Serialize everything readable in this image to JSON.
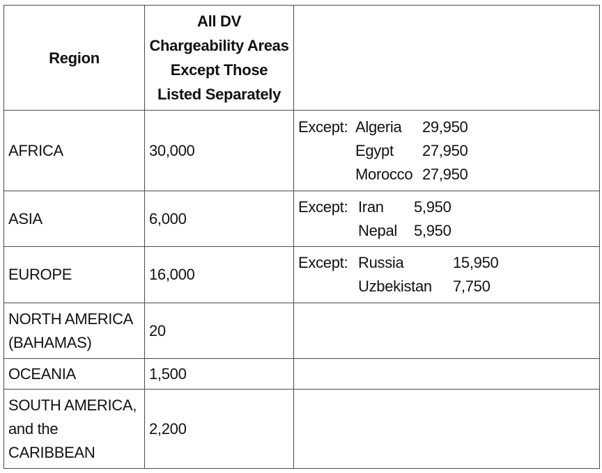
{
  "table": {
    "headers": {
      "region": "Region",
      "all_dv": "All DV Chargeability Areas Except Those Listed Separately",
      "exceptions": ""
    },
    "rows": [
      {
        "region": "AFRICA",
        "value": "30,000",
        "except_label": "Except:",
        "exceptions": [
          {
            "country": "Algeria",
            "value": "29,950"
          },
          {
            "country": "Egypt",
            "value": "27,950"
          },
          {
            "country": "Morocco",
            "value": "27,950"
          }
        ]
      },
      {
        "region": "ASIA",
        "value": "6,000",
        "except_label": "Except:",
        "exceptions": [
          {
            "country": "Iran",
            "value": "5,950"
          },
          {
            "country": "Nepal",
            "value": "5,950"
          }
        ]
      },
      {
        "region": "EUROPE",
        "value": "16,000",
        "except_label": "Except:",
        "exceptions": [
          {
            "country": "Russia",
            "value": "15,950"
          },
          {
            "country": "Uzbekistan",
            "value": "7,750"
          }
        ]
      },
      {
        "region": "NORTH AMERICA (BAHAMAS)",
        "value": "20"
      },
      {
        "region": "OCEANIA",
        "value": "1,500"
      },
      {
        "region": "SOUTH AMERICA, and the CARIBBEAN",
        "value": "2,200"
      }
    ]
  }
}
